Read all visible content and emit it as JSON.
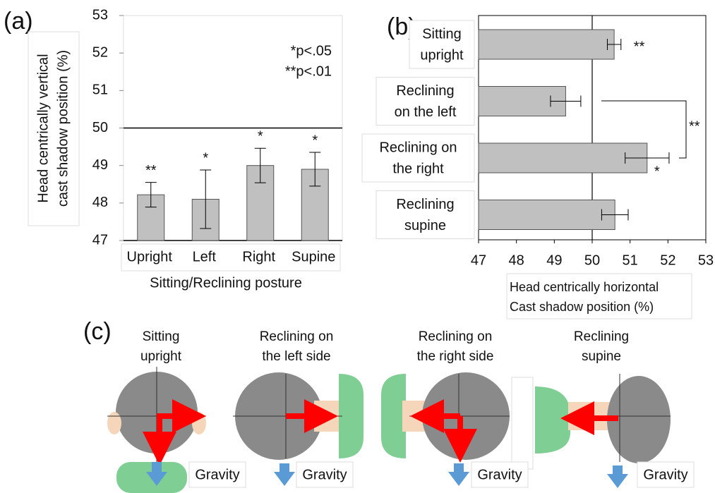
{
  "chart_data": [
    {
      "type": "bar",
      "panel": "(a)",
      "orientation": "vertical",
      "y_label": [
        "Head centrically vertical",
        "cast shadow position (%)"
      ],
      "x_label": "Sitting/Reclining posture",
      "categories": [
        "Upright",
        "Left",
        "Right",
        "Supine"
      ],
      "values": [
        48.22,
        48.1,
        49.0,
        48.9
      ],
      "errors": [
        0.33,
        0.78,
        0.46,
        0.45
      ],
      "significance": [
        "**",
        "*",
        "*",
        "*"
      ],
      "annotations": [
        "*p<.05",
        "**p<.01"
      ],
      "reference": 50,
      "color": "#c0c0c0",
      "ylim": [
        47,
        53
      ],
      "yticks": [
        47,
        48,
        49,
        50,
        51,
        52,
        53
      ]
    },
    {
      "type": "hbar",
      "panel": "(b)",
      "categories": [
        [
          "Sitting",
          "upright"
        ],
        [
          "Reclining",
          "on the left"
        ],
        [
          "Reclining on",
          "the right"
        ],
        [
          "Reclining",
          "supine"
        ]
      ],
      "values": [
        50.58,
        49.3,
        51.45,
        50.6
      ],
      "errors": [
        0.18,
        0.4,
        0.58,
        0.35
      ],
      "significance": [
        "**",
        null,
        "*",
        null
      ],
      "bracket_label": "**",
      "x_label": [
        "Head centrically horizontal",
        "Cast shadow position (%)"
      ],
      "reference": 50,
      "color": "#c0c0c0",
      "xlim": [
        47,
        53
      ],
      "xticks": [
        47,
        48,
        49,
        50,
        51,
        52,
        53
      ]
    }
  ],
  "illustration": {
    "panel": "(c)",
    "panels": [
      {
        "title": [
          "Sitting",
          "upright"
        ],
        "gravity": "Gravity"
      },
      {
        "title": [
          "Reclining on",
          "the left side"
        ],
        "gravity": "Gravity"
      },
      {
        "title": [
          "Reclining on",
          "the right side"
        ],
        "gravity": "Gravity"
      },
      {
        "title": [
          "Reclining",
          "supine"
        ],
        "gravity": "Gravity"
      }
    ]
  }
}
